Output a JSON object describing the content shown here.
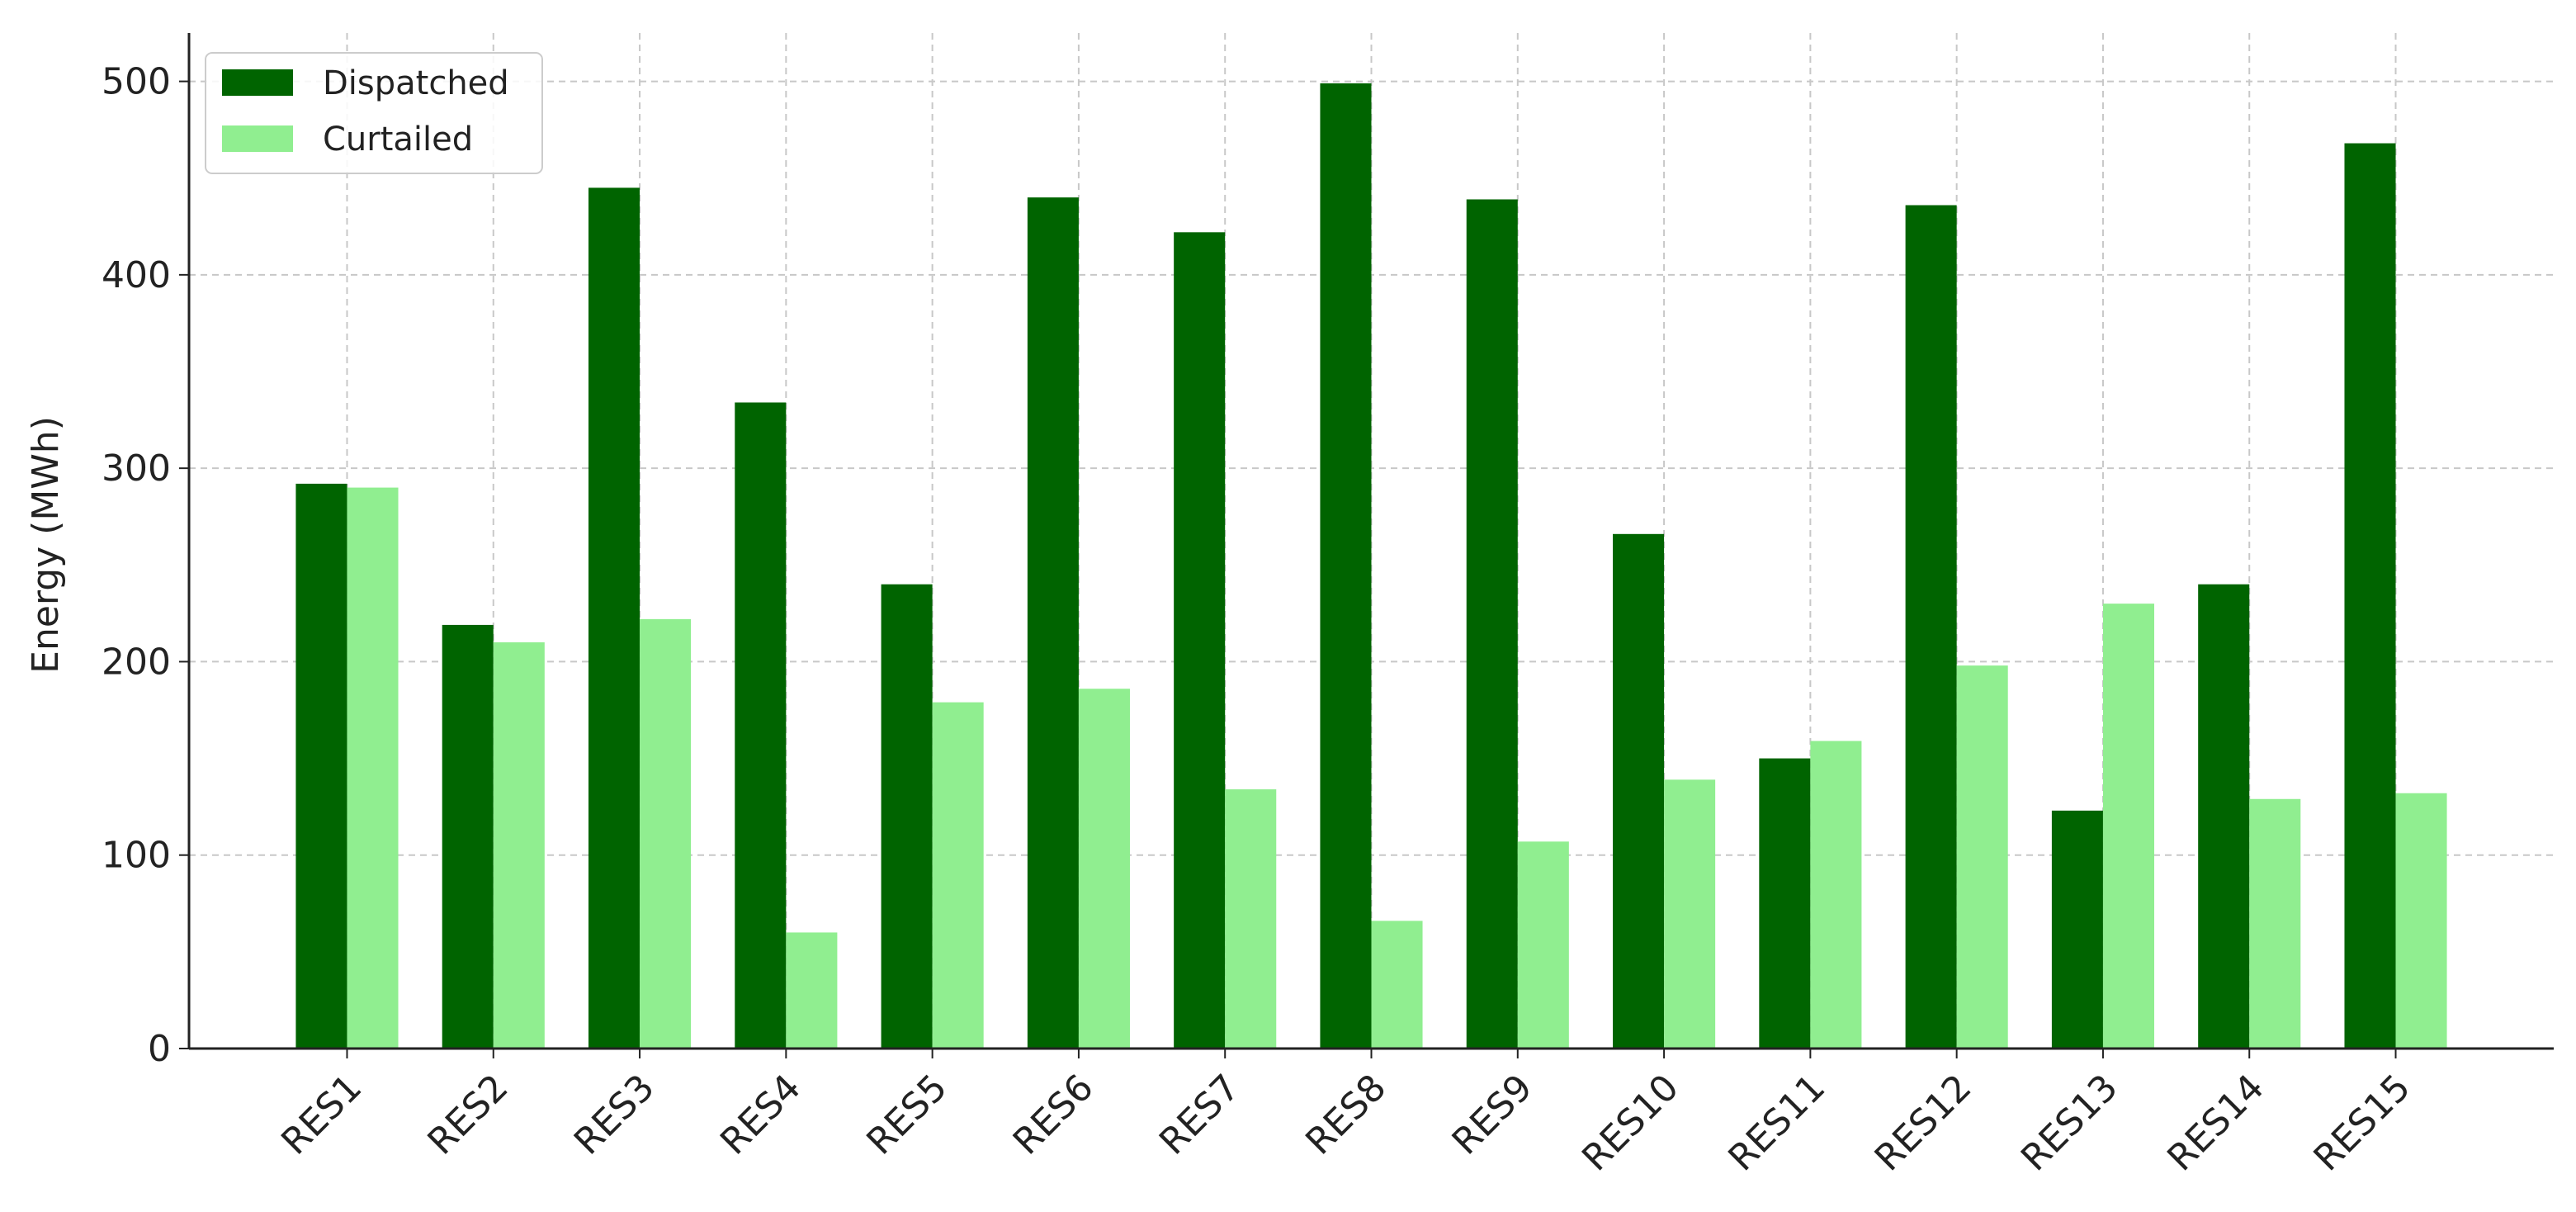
{
  "chart_data": {
    "type": "bar",
    "ylabel": "Energy (MWh)",
    "categories": [
      "RES1",
      "RES2",
      "RES3",
      "RES4",
      "RES5",
      "RES6",
      "RES7",
      "RES8",
      "RES9",
      "RES10",
      "RES11",
      "RES12",
      "RES13",
      "RES14",
      "RES15"
    ],
    "series": [
      {
        "name": "Dispatched",
        "color": "#006400",
        "values": [
          292,
          219,
          445,
          334,
          240,
          440,
          422,
          499,
          439,
          266,
          150,
          436,
          123,
          240,
          468
        ]
      },
      {
        "name": "Curtailed",
        "color": "#90ee90",
        "values": [
          290,
          210,
          222,
          60,
          179,
          186,
          134,
          66,
          107,
          139,
          159,
          198,
          230,
          129,
          132
        ]
      }
    ],
    "ylim": [
      0,
      525
    ],
    "yticks": [
      0,
      100,
      200,
      300,
      400,
      500
    ],
    "grid": true,
    "legend": "upper-left"
  }
}
